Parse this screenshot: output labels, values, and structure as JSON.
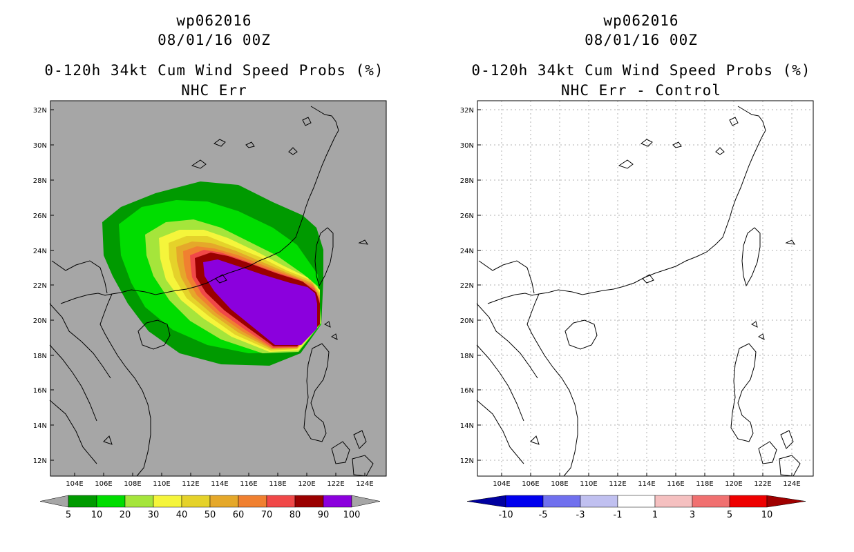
{
  "left_panel": {
    "storm_id": "wp062016",
    "datetime": "08/01/16 00Z",
    "product": "0-120h 34kt Cum Wind Speed Probs (%)",
    "subtitle": "NHC Err",
    "background_color": "#a6a6a6",
    "colorbar": {
      "labels": [
        "5",
        "10",
        "20",
        "30",
        "40",
        "50",
        "60",
        "70",
        "80",
        "90",
        "100"
      ],
      "colors": [
        "#009a00",
        "#00dd00",
        "#a5e53b",
        "#f5f53b",
        "#e5d22a",
        "#e5a82a",
        "#f08030",
        "#f04848",
        "#9a0000",
        "#8b00dd"
      ]
    }
  },
  "right_panel": {
    "storm_id": "wp062016",
    "datetime": "08/01/16 00Z",
    "product": "0-120h 34kt Cum Wind Speed Probs (%)",
    "subtitle": "NHC Err - Control",
    "background_color": "#ffffff",
    "colorbar": {
      "labels": [
        "-10",
        "-5",
        "-3",
        "-1",
        "1",
        "3",
        "5",
        "10"
      ],
      "colors": [
        "#0000a0",
        "#0000ee",
        "#7070ee",
        "#c0c0f0",
        "#ffffff",
        "#f5c0c0",
        "#f07070",
        "#ee0000",
        "#a00000"
      ]
    }
  },
  "axes": {
    "lat_labels": [
      "32N",
      "30N",
      "28N",
      "26N",
      "24N",
      "22N",
      "20N",
      "18N",
      "16N",
      "14N",
      "12N"
    ],
    "lon_labels": [
      "104E",
      "106E",
      "108E",
      "110E",
      "112E",
      "114E",
      "116E",
      "118E",
      "120E",
      "122E",
      "124E"
    ]
  }
}
